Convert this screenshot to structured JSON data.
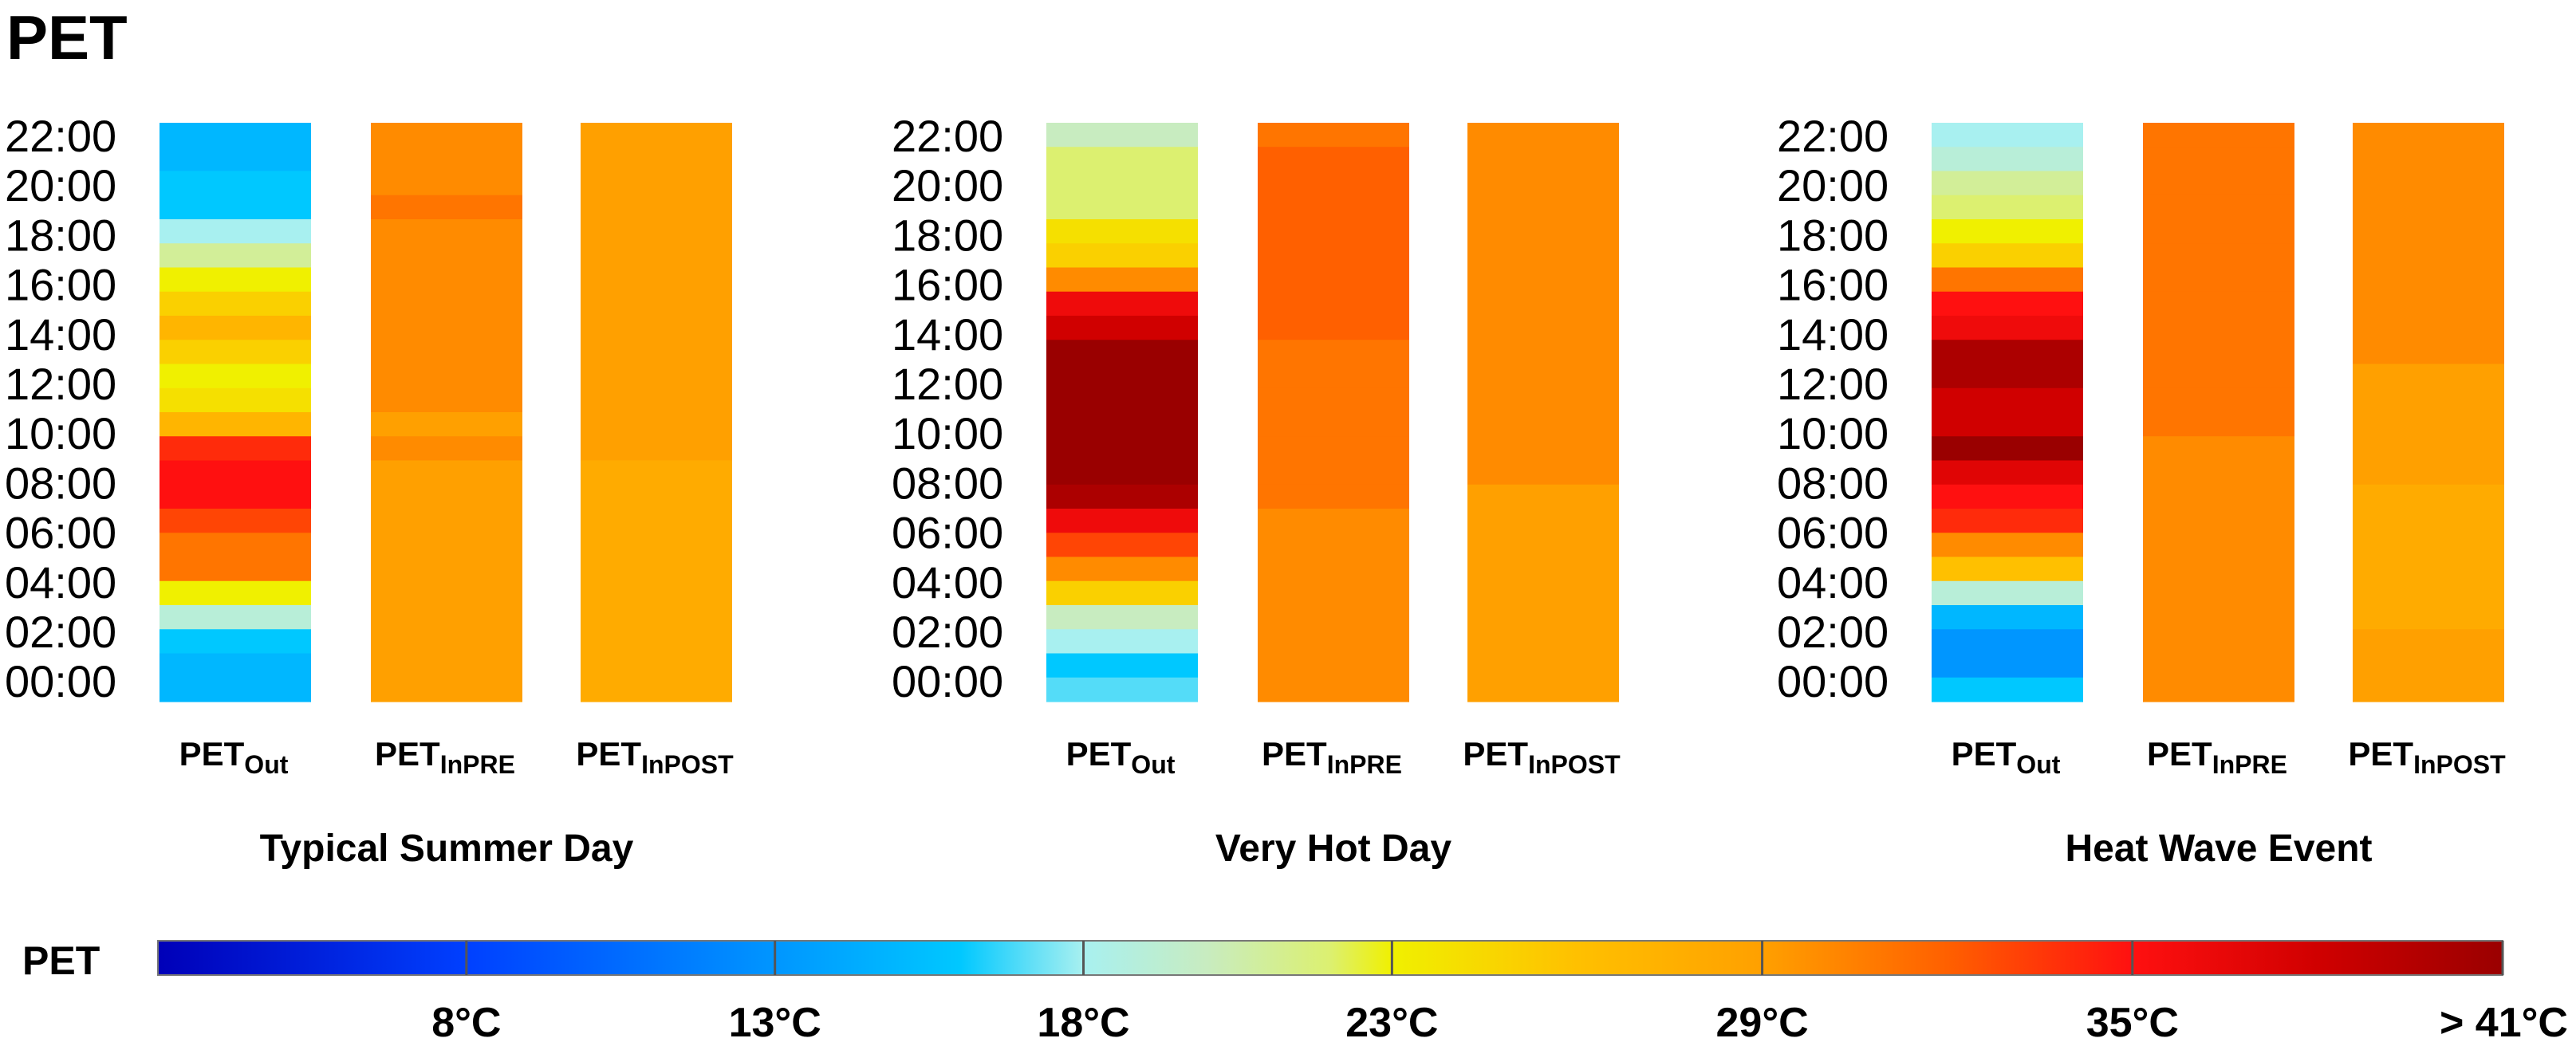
{
  "page": {
    "title": "PET"
  },
  "chart_data": {
    "type": "heatmap",
    "time_labels": [
      "22:00",
      "20:00",
      "18:00",
      "16:00",
      "14:00",
      "12:00",
      "10:00",
      "08:00",
      "06:00",
      "04:00",
      "02:00",
      "00:00"
    ],
    "column_labels": [
      {
        "main": "PET",
        "sub": "Out"
      },
      {
        "main": "PET",
        "sub": "InPRE"
      },
      {
        "main": "PET",
        "sub": "InPOST"
      }
    ],
    "hours_top_to_bottom": [
      23,
      22,
      21,
      20,
      19,
      18,
      17,
      16,
      15,
      14,
      13,
      12,
      11,
      10,
      9,
      8,
      7,
      6,
      5,
      4,
      3,
      2,
      1,
      0
    ],
    "panels": [
      {
        "title": "Typical Summer Day",
        "series": [
          {
            "name": "PETOut",
            "values": [
              15,
              15,
              16,
              16,
              18,
              21,
              23,
              25,
              27,
              25,
              23,
              24,
              27,
              34,
              35,
              35,
              33,
              31,
              31,
              23,
              19,
              16,
              15,
              15
            ]
          },
          {
            "name": "PETInPRE",
            "values": [
              30,
              30,
              30,
              31,
              30,
              30,
              30,
              30,
              30,
              30,
              30,
              30,
              29,
              30,
              29,
              29,
              29,
              29,
              29,
              29,
              29,
              29,
              29,
              29
            ]
          },
          {
            "name": "PETInPOST",
            "values": [
              29,
              29,
              29,
              29,
              29,
              29,
              29,
              29,
              29,
              29,
              29,
              29,
              29,
              29,
              28,
              28,
              28,
              28,
              28,
              28,
              28,
              28,
              28,
              28
            ]
          }
        ]
      },
      {
        "title": "Very Hot Day",
        "series": [
          {
            "name": "PETOut",
            "values": [
              20,
              22,
              22,
              22,
              24,
              25,
              30,
              36,
              38,
              41,
              41,
              41,
              41,
              41,
              41,
              40,
              36,
              33,
              30,
              25,
              20,
              18,
              16,
              17
            ]
          },
          {
            "name": "PETInPRE",
            "values": [
              31,
              32,
              32,
              32,
              32,
              32,
              32,
              32,
              32,
              31,
              31,
              31,
              31,
              31,
              31,
              31,
              30,
              30,
              30,
              30,
              30,
              30,
              30,
              30
            ]
          },
          {
            "name": "PETInPOST",
            "values": [
              30,
              30,
              30,
              30,
              30,
              30,
              30,
              30,
              30,
              30,
              30,
              30,
              30,
              30,
              30,
              29,
              29,
              29,
              29,
              29,
              29,
              29,
              29,
              29
            ]
          }
        ]
      },
      {
        "title": "Heat Wave Event",
        "series": [
          {
            "name": "PETOut",
            "values": [
              18,
              19,
              21,
              22,
              23,
              25,
              31,
              35,
              36,
              40,
              40,
              38,
              38,
              41,
              37,
              35,
              34,
              30,
              26,
              19,
              15,
              13,
              13,
              16
            ]
          },
          {
            "name": "PETInPRE",
            "values": [
              31,
              31,
              31,
              31,
              31,
              31,
              31,
              31,
              31,
              31,
              31,
              31,
              31,
              30,
              30,
              30,
              30,
              30,
              30,
              30,
              30,
              30,
              30,
              30
            ]
          },
          {
            "name": "PETInPOST",
            "values": [
              30,
              30,
              30,
              30,
              30,
              30,
              30,
              30,
              30,
              30,
              29,
              29,
              29,
              29,
              29,
              28,
              28,
              28,
              28,
              28,
              28,
              29,
              29,
              29
            ]
          }
        ]
      }
    ],
    "colorbar": {
      "title": "PET",
      "range": [
        3,
        41
      ],
      "tick_values": [
        8,
        13,
        18,
        23,
        29,
        35,
        41
      ],
      "tick_labels": [
        "8°C",
        "13°C",
        "18°C",
        "23°C",
        "29°C",
        "35°C",
        "> 41°C"
      ],
      "stops": [
        {
          "value": 3,
          "color": "#0000b8"
        },
        {
          "value": 8,
          "color": "#0040ff"
        },
        {
          "value": 13,
          "color": "#0096ff"
        },
        {
          "value": 16,
          "color": "#00c8ff"
        },
        {
          "value": 18,
          "color": "#a8f0f0"
        },
        {
          "value": 20,
          "color": "#c8ecc0"
        },
        {
          "value": 22,
          "color": "#dcf070"
        },
        {
          "value": 23,
          "color": "#f0f000"
        },
        {
          "value": 26,
          "color": "#ffc000"
        },
        {
          "value": 29,
          "color": "#ffa000"
        },
        {
          "value": 32,
          "color": "#ff6000"
        },
        {
          "value": 35,
          "color": "#ff1010"
        },
        {
          "value": 38,
          "color": "#d00000"
        },
        {
          "value": 41,
          "color": "#9a0000"
        }
      ]
    }
  }
}
